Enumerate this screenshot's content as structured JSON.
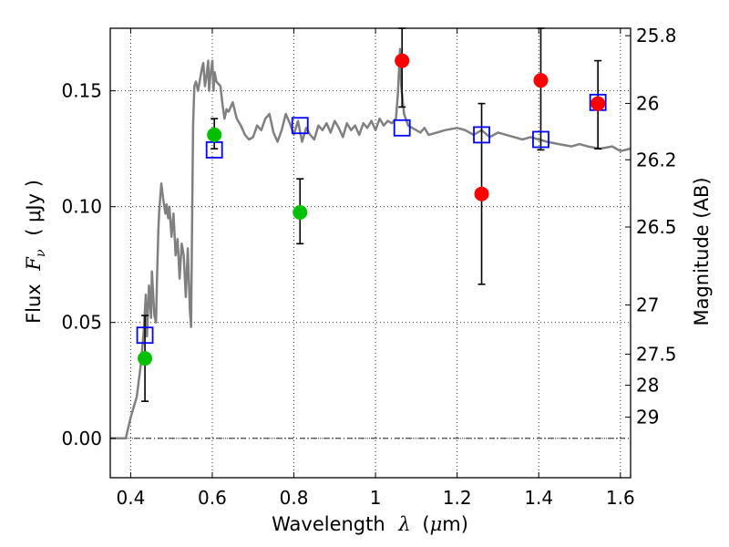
{
  "chart_data": {
    "type": "scatter",
    "title": "",
    "xlabel": {
      "prefix": "Wavelength",
      "symbol": "λ",
      "unit_open": "(",
      "unit_mu": "μ",
      "unit_rest": "m)"
    },
    "ylabel": {
      "prefix": "Flux",
      "symbol": "F",
      "subscript": "ν",
      "unit": "( μJy )"
    },
    "y2label": "Magnitude (AB)",
    "xlim": [
      0.35,
      1.625
    ],
    "ylim": [
      -0.017,
      0.177
    ],
    "grid": true,
    "xticks": [
      {
        "value": 0.4,
        "label": "0.4"
      },
      {
        "value": 0.6,
        "label": "0.6"
      },
      {
        "value": 0.8,
        "label": "0.8"
      },
      {
        "value": 1.0,
        "label": "1"
      },
      {
        "value": 1.2,
        "label": "1.2"
      },
      {
        "value": 1.4,
        "label": "1.4"
      },
      {
        "value": 1.6,
        "label": "1.6"
      }
    ],
    "yticks": [
      {
        "value": 0.0,
        "label": "0.00"
      },
      {
        "value": 0.05,
        "label": "0.05"
      },
      {
        "value": 0.1,
        "label": "0.10"
      },
      {
        "value": 0.15,
        "label": "0.15"
      }
    ],
    "y2ticks": [
      {
        "value": 25.8,
        "label": "25.8"
      },
      {
        "value": 26.0,
        "label": "26"
      },
      {
        "value": 26.2,
        "label": "26.2"
      },
      {
        "value": 26.5,
        "label": "26.5"
      },
      {
        "value": 27.0,
        "label": "27"
      },
      {
        "value": 27.5,
        "label": "27.5"
      },
      {
        "value": 28.0,
        "label": "28"
      },
      {
        "value": 29.0,
        "label": "29"
      }
    ],
    "zero_line": 0.0,
    "colors": {
      "model": "#808080",
      "green": "#00c000",
      "red": "#ff0000",
      "box": "#0000ff",
      "errorbar": "#000000"
    },
    "model_spectrum": {
      "x": [
        0.35,
        0.388,
        0.4,
        0.415,
        0.425,
        0.432,
        0.437,
        0.44,
        0.445,
        0.45,
        0.452,
        0.458,
        0.462,
        0.465,
        0.468,
        0.47,
        0.475,
        0.48,
        0.485,
        0.488,
        0.492,
        0.495,
        0.5,
        0.505,
        0.51,
        0.515,
        0.52,
        0.525,
        0.53,
        0.535,
        0.54,
        0.545,
        0.548,
        0.55,
        0.553,
        0.556,
        0.56,
        0.565,
        0.57,
        0.575,
        0.578,
        0.582,
        0.585,
        0.59,
        0.592,
        0.595,
        0.6,
        0.603,
        0.606,
        0.61,
        0.615,
        0.62,
        0.625,
        0.63,
        0.635,
        0.64,
        0.65,
        0.66,
        0.67,
        0.68,
        0.69,
        0.7,
        0.71,
        0.72,
        0.73,
        0.74,
        0.75,
        0.76,
        0.77,
        0.78,
        0.79,
        0.8,
        0.81,
        0.82,
        0.83,
        0.84,
        0.85,
        0.86,
        0.87,
        0.88,
        0.89,
        0.9,
        0.91,
        0.92,
        0.93,
        0.94,
        0.95,
        0.96,
        0.97,
        0.98,
        0.99,
        1.0,
        1.01,
        1.02,
        1.03,
        1.04,
        1.05,
        1.055,
        1.06,
        1.063,
        1.07,
        1.08,
        1.09,
        1.1,
        1.11,
        1.12,
        1.13,
        1.15,
        1.17,
        1.2,
        1.22,
        1.24,
        1.26,
        1.28,
        1.3,
        1.32,
        1.34,
        1.36,
        1.38,
        1.4,
        1.42,
        1.45,
        1.48,
        1.5,
        1.52,
        1.55,
        1.58,
        1.6,
        1.625
      ],
      "y": [
        0.0,
        0.0,
        0.009,
        0.018,
        0.032,
        0.046,
        0.062,
        0.044,
        0.066,
        0.052,
        0.072,
        0.053,
        0.05,
        0.072,
        0.09,
        0.098,
        0.11,
        0.103,
        0.097,
        0.101,
        0.095,
        0.1,
        0.087,
        0.097,
        0.079,
        0.086,
        0.069,
        0.084,
        0.079,
        0.061,
        0.082,
        0.056,
        0.048,
        0.085,
        0.135,
        0.152,
        0.154,
        0.15,
        0.155,
        0.16,
        0.162,
        0.152,
        0.155,
        0.163,
        0.15,
        0.156,
        0.163,
        0.15,
        0.158,
        0.154,
        0.153,
        0.152,
        0.144,
        0.138,
        0.142,
        0.141,
        0.145,
        0.138,
        0.135,
        0.131,
        0.129,
        0.13,
        0.135,
        0.133,
        0.138,
        0.14,
        0.132,
        0.128,
        0.133,
        0.14,
        0.136,
        0.131,
        0.137,
        0.128,
        0.134,
        0.131,
        0.129,
        0.135,
        0.133,
        0.136,
        0.132,
        0.137,
        0.134,
        0.13,
        0.136,
        0.133,
        0.135,
        0.131,
        0.136,
        0.134,
        0.137,
        0.133,
        0.138,
        0.135,
        0.137,
        0.136,
        0.138,
        0.149,
        0.168,
        0.152,
        0.14,
        0.135,
        0.134,
        0.133,
        0.132,
        0.134,
        0.131,
        0.132,
        0.133,
        0.134,
        0.133,
        0.131,
        0.133,
        0.13,
        0.132,
        0.131,
        0.13,
        0.129,
        0.13,
        0.129,
        0.128,
        0.127,
        0.126,
        0.127,
        0.126,
        0.125,
        0.126,
        0.124,
        0.125
      ]
    },
    "model_points": {
      "x": [
        0.435,
        0.605,
        0.815,
        1.065,
        1.26,
        1.405,
        1.545
      ],
      "y": [
        0.0445,
        0.1245,
        0.135,
        0.134,
        0.131,
        0.129,
        0.145
      ]
    },
    "observed_green": {
      "x": [
        0.435,
        0.605,
        0.815
      ],
      "y": [
        0.0345,
        0.131,
        0.0975
      ],
      "ylo": [
        0.016,
        0.125,
        0.084
      ],
      "yhi": [
        0.053,
        0.138,
        0.112
      ]
    },
    "observed_red": {
      "x": [
        1.065,
        1.26,
        1.405,
        1.545
      ],
      "y": [
        0.163,
        0.1055,
        0.1545,
        0.1445
      ],
      "ylo": [
        0.143,
        0.0665,
        0.1245,
        0.125
      ],
      "yhi": [
        0.177,
        0.1445,
        0.177,
        0.163
      ]
    }
  }
}
